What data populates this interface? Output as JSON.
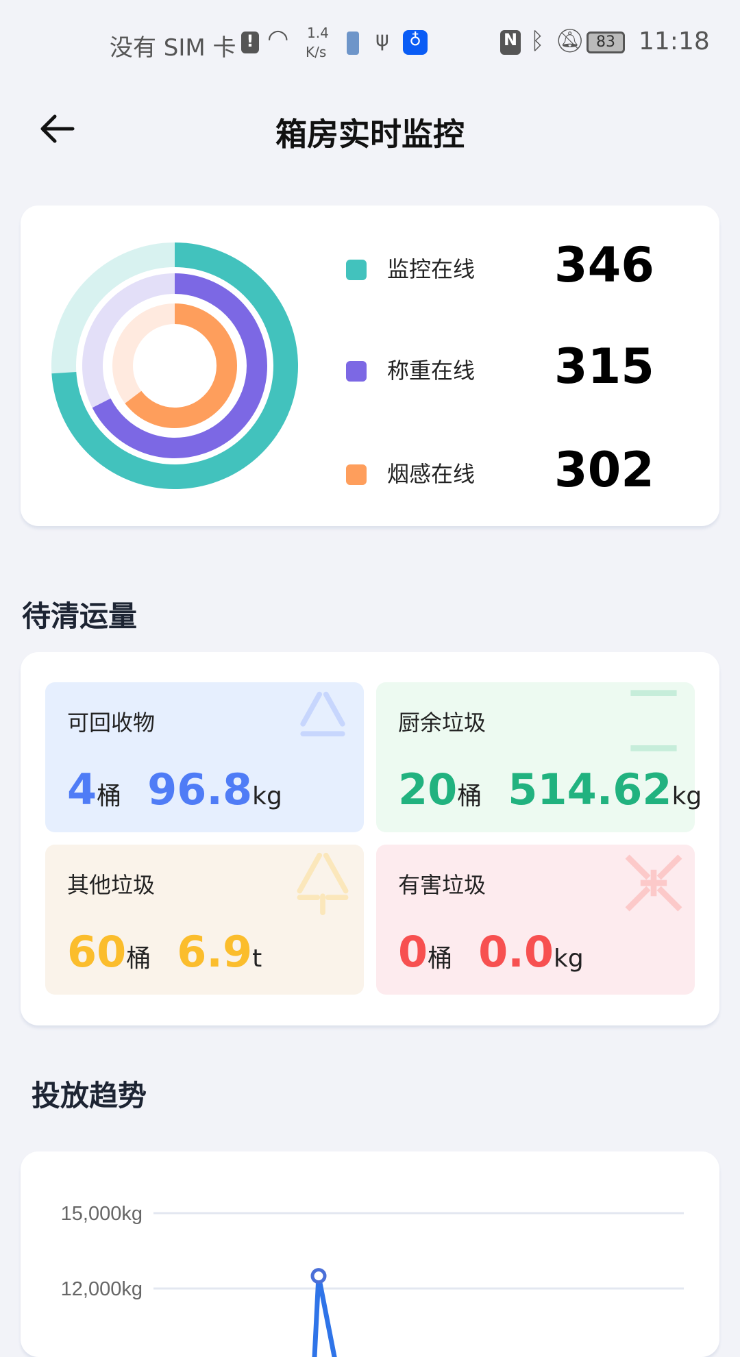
{
  "status_bar": {
    "carrier": "没有 SIM 卡",
    "net_speed_value": "1.4",
    "net_speed_unit": "K/s",
    "battery": "83",
    "time": "11:18",
    "icons": [
      "sim-alert-icon",
      "wifi-icon",
      "battery-saver-icon",
      "usb-icon",
      "bulb-icon",
      "nfc-icon",
      "bluetooth-icon",
      "mute-icon",
      "battery-icon"
    ]
  },
  "header": {
    "title": "箱房实时监控",
    "back_icon": "arrow-left-icon"
  },
  "online": {
    "items": [
      {
        "label": "监控在线",
        "value": "346",
        "color": "#42c2bd",
        "track": "#d8f2f0",
        "fill": 0.74
      },
      {
        "label": "称重在线",
        "value": "315",
        "color": "#7c68e4",
        "track": "#e3dff8",
        "fill": 0.675
      },
      {
        "label": "烟感在线",
        "value": "302",
        "color": "#fe9e5c",
        "track": "#ffeadf",
        "fill": 0.647
      }
    ]
  },
  "pending": {
    "title": "待清运量",
    "tiles": [
      {
        "title": "可回收物",
        "count": "4",
        "count_unit": "桶",
        "weight": "96.8",
        "weight_unit": "kg",
        "color": "#4f7cf6",
        "bg": "#e6effe",
        "icon": "recycle-icon",
        "icon_color": "#c7d6fd"
      },
      {
        "title": "厨余垃圾",
        "count": "20",
        "count_unit": "桶",
        "weight": "514.62",
        "weight_unit": "kg",
        "color": "#21b27f",
        "bg": "#edfaf1",
        "icon": "hourglass-icon",
        "icon_color": "#c6edda"
      },
      {
        "title": "其他垃圾",
        "count": "60",
        "count_unit": "桶",
        "weight": "6.9",
        "weight_unit": "t",
        "color": "#fbbd2c",
        "bg": "#faf3ea",
        "icon": "triangle-arrows-icon",
        "icon_color": "#fbe7bb"
      },
      {
        "title": "有害垃圾",
        "count": "0",
        "count_unit": "桶",
        "weight": "0.0",
        "weight_unit": "kg",
        "color": "#f75050",
        "bg": "#fdebee",
        "icon": "hazard-arrows-icon",
        "icon_color": "#fcc9c9"
      }
    ]
  },
  "trend": {
    "title": "投放趋势"
  },
  "chart_data": {
    "type": "line",
    "yticks": [
      "15,000kg",
      "12,000kg"
    ],
    "ytick_values": [
      15000,
      12000
    ],
    "grid": true,
    "series": [
      {
        "color": "#2f74e8",
        "points": [
          {
            "y": 12500
          }
        ]
      }
    ]
  }
}
